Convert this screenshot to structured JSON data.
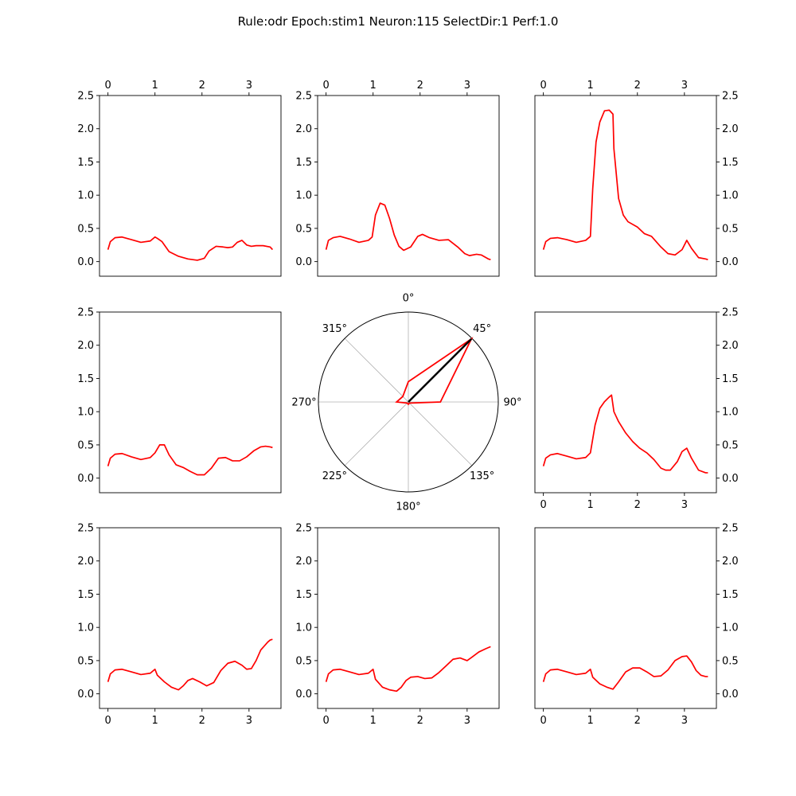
{
  "figure_title": "Rule:odr Epoch:stim1 Neuron:115 SelectDir:1 Perf:1.0",
  "colors": {
    "trace": "#ff0000",
    "arrow": "#000000",
    "grid": "#b0b0b0",
    "axis": "#000000"
  },
  "chart_data": [
    {
      "type": "line",
      "panel": "top-left",
      "xaxis": "top",
      "yaxis": "left",
      "xlim": [
        -0.18,
        3.68
      ],
      "ylim": [
        -0.22,
        2.5
      ],
      "xticks": [
        "0",
        "1",
        "2",
        "3"
      ],
      "yticks": [
        "0.0",
        "0.5",
        "1.0",
        "1.5",
        "2.0",
        "2.5"
      ],
      "series": [
        {
          "x": [
            0,
            0.05,
            0.15,
            0.3,
            0.5,
            0.7,
            0.9,
            1.0,
            1.05,
            1.15,
            1.3,
            1.5,
            1.7,
            1.9,
            2.05,
            2.15,
            2.3,
            2.45,
            2.55,
            2.65,
            2.75,
            2.85,
            2.95,
            3.05,
            3.15,
            3.3,
            3.45,
            3.5
          ],
          "y": [
            0.18,
            0.3,
            0.36,
            0.37,
            0.33,
            0.29,
            0.31,
            0.37,
            0.35,
            0.3,
            0.15,
            0.08,
            0.04,
            0.02,
            0.05,
            0.16,
            0.23,
            0.22,
            0.21,
            0.22,
            0.29,
            0.32,
            0.25,
            0.23,
            0.24,
            0.24,
            0.22,
            0.18
          ]
        }
      ]
    },
    {
      "type": "line",
      "panel": "top-middle",
      "xaxis": "top",
      "yaxis": "left",
      "xlim": [
        -0.18,
        3.68
      ],
      "ylim": [
        -0.22,
        2.5
      ],
      "xticks": [
        "0",
        "1",
        "2",
        "3"
      ],
      "yticks": [
        "0.0",
        "0.5",
        "1.0",
        "1.5",
        "2.0",
        "2.5"
      ],
      "series": [
        {
          "x": [
            0,
            0.05,
            0.15,
            0.3,
            0.5,
            0.7,
            0.9,
            0.98,
            1.05,
            1.15,
            1.25,
            1.35,
            1.45,
            1.55,
            1.65,
            1.8,
            1.95,
            2.05,
            2.2,
            2.4,
            2.6,
            2.8,
            2.95,
            3.05,
            3.2,
            3.3,
            3.45,
            3.5
          ],
          "y": [
            0.18,
            0.32,
            0.36,
            0.38,
            0.34,
            0.29,
            0.32,
            0.37,
            0.7,
            0.88,
            0.85,
            0.65,
            0.4,
            0.23,
            0.17,
            0.22,
            0.38,
            0.41,
            0.36,
            0.32,
            0.33,
            0.22,
            0.12,
            0.09,
            0.11,
            0.1,
            0.04,
            0.03
          ]
        }
      ]
    },
    {
      "type": "line",
      "panel": "top-right",
      "xaxis": "top",
      "yaxis": "right",
      "xlim": [
        -0.18,
        3.68
      ],
      "ylim": [
        -0.22,
        2.5
      ],
      "xticks": [
        "0",
        "1",
        "2",
        "3"
      ],
      "yticks": [
        "0.0",
        "0.5",
        "1.0",
        "1.5",
        "2.0",
        "2.5"
      ],
      "series": [
        {
          "x": [
            0,
            0.05,
            0.15,
            0.3,
            0.5,
            0.7,
            0.9,
            1.0,
            1.05,
            1.12,
            1.2,
            1.3,
            1.4,
            1.48,
            1.5,
            1.6,
            1.7,
            1.8,
            2.0,
            2.15,
            2.3,
            2.5,
            2.65,
            2.8,
            2.95,
            3.05,
            3.15,
            3.3,
            3.45,
            3.5
          ],
          "y": [
            0.18,
            0.3,
            0.35,
            0.36,
            0.33,
            0.29,
            0.32,
            0.38,
            1.1,
            1.8,
            2.1,
            2.27,
            2.28,
            2.22,
            1.7,
            0.95,
            0.7,
            0.6,
            0.52,
            0.42,
            0.38,
            0.22,
            0.12,
            0.1,
            0.18,
            0.32,
            0.2,
            0.06,
            0.04,
            0.03
          ]
        }
      ]
    },
    {
      "type": "line",
      "panel": "middle-left",
      "xaxis": "none",
      "yaxis": "left",
      "xlim": [
        -0.18,
        3.68
      ],
      "ylim": [
        -0.22,
        2.5
      ],
      "xticks": [],
      "yticks": [
        "0.0",
        "0.5",
        "1.0",
        "1.5",
        "2.0",
        "2.5"
      ],
      "series": [
        {
          "x": [
            0,
            0.05,
            0.15,
            0.3,
            0.5,
            0.7,
            0.9,
            1.0,
            1.1,
            1.2,
            1.3,
            1.45,
            1.6,
            1.75,
            1.9,
            2.05,
            2.2,
            2.35,
            2.5,
            2.65,
            2.8,
            2.95,
            3.1,
            3.25,
            3.35,
            3.45,
            3.5
          ],
          "y": [
            0.18,
            0.3,
            0.36,
            0.37,
            0.32,
            0.28,
            0.31,
            0.38,
            0.5,
            0.5,
            0.35,
            0.2,
            0.16,
            0.1,
            0.05,
            0.05,
            0.15,
            0.3,
            0.31,
            0.26,
            0.26,
            0.32,
            0.41,
            0.47,
            0.48,
            0.47,
            0.46
          ]
        }
      ]
    },
    {
      "type": "polar",
      "panel": "center",
      "theta_labels": [
        "0°",
        "45°",
        "90°",
        "135°",
        "180°",
        "225°",
        "270°",
        "315°"
      ],
      "theta_deg": [
        0,
        45,
        90,
        135,
        180,
        225,
        270,
        315
      ],
      "radial_max": 2.3,
      "r": [
        0.52,
        2.28,
        0.82,
        0.04,
        0.06,
        0.04,
        0.3,
        0.2
      ],
      "arrow": {
        "theta_deg": 45,
        "r": 2.28
      }
    },
    {
      "type": "line",
      "panel": "middle-right",
      "xaxis": "bottom",
      "yaxis": "right",
      "xlim": [
        -0.18,
        3.68
      ],
      "ylim": [
        -0.22,
        2.5
      ],
      "xticks": [
        "0",
        "1",
        "2",
        "3"
      ],
      "yticks": [
        "0.0",
        "0.5",
        "1.0",
        "1.5",
        "2.0",
        "2.5"
      ],
      "series": [
        {
          "x": [
            0,
            0.05,
            0.15,
            0.3,
            0.5,
            0.7,
            0.9,
            1.0,
            1.1,
            1.2,
            1.3,
            1.4,
            1.45,
            1.5,
            1.6,
            1.75,
            1.9,
            2.05,
            2.2,
            2.35,
            2.5,
            2.6,
            2.7,
            2.85,
            2.95,
            3.05,
            3.15,
            3.3,
            3.45,
            3.5
          ],
          "y": [
            0.18,
            0.3,
            0.35,
            0.37,
            0.33,
            0.29,
            0.31,
            0.38,
            0.8,
            1.05,
            1.15,
            1.22,
            1.25,
            1.0,
            0.85,
            0.68,
            0.55,
            0.45,
            0.38,
            0.28,
            0.15,
            0.12,
            0.12,
            0.25,
            0.4,
            0.45,
            0.3,
            0.12,
            0.08,
            0.08
          ]
        }
      ]
    },
    {
      "type": "line",
      "panel": "bottom-left",
      "xaxis": "bottom",
      "yaxis": "left",
      "xlim": [
        -0.18,
        3.68
      ],
      "ylim": [
        -0.22,
        2.5
      ],
      "xticks": [
        "0",
        "1",
        "2",
        "3"
      ],
      "yticks": [
        "0.0",
        "0.5",
        "1.0",
        "1.5",
        "2.0",
        "2.5"
      ],
      "series": [
        {
          "x": [
            0,
            0.05,
            0.15,
            0.3,
            0.5,
            0.7,
            0.9,
            1.0,
            1.05,
            1.2,
            1.35,
            1.5,
            1.6,
            1.7,
            1.8,
            1.95,
            2.1,
            2.25,
            2.4,
            2.55,
            2.7,
            2.85,
            2.95,
            3.05,
            3.15,
            3.25,
            3.4,
            3.45,
            3.5
          ],
          "y": [
            0.18,
            0.3,
            0.36,
            0.37,
            0.33,
            0.29,
            0.31,
            0.37,
            0.28,
            0.18,
            0.1,
            0.06,
            0.12,
            0.2,
            0.23,
            0.18,
            0.12,
            0.17,
            0.35,
            0.46,
            0.49,
            0.43,
            0.37,
            0.38,
            0.5,
            0.66,
            0.78,
            0.81,
            0.82
          ]
        }
      ]
    },
    {
      "type": "line",
      "panel": "bottom-middle",
      "xaxis": "bottom",
      "yaxis": "left",
      "xlim": [
        -0.18,
        3.68
      ],
      "ylim": [
        -0.22,
        2.5
      ],
      "xticks": [
        "0",
        "1",
        "2",
        "3"
      ],
      "yticks": [
        "0.0",
        "0.5",
        "1.0",
        "1.5",
        "2.0",
        "2.5"
      ],
      "series": [
        {
          "x": [
            0,
            0.05,
            0.15,
            0.3,
            0.5,
            0.7,
            0.9,
            1.0,
            1.05,
            1.2,
            1.35,
            1.5,
            1.6,
            1.7,
            1.8,
            1.95,
            2.1,
            2.25,
            2.4,
            2.55,
            2.7,
            2.85,
            3.0,
            3.1,
            3.25,
            3.4,
            3.5
          ],
          "y": [
            0.18,
            0.3,
            0.36,
            0.37,
            0.33,
            0.29,
            0.31,
            0.37,
            0.22,
            0.1,
            0.06,
            0.04,
            0.1,
            0.2,
            0.25,
            0.26,
            0.23,
            0.24,
            0.32,
            0.42,
            0.52,
            0.54,
            0.5,
            0.55,
            0.63,
            0.68,
            0.71
          ]
        }
      ]
    },
    {
      "type": "line",
      "panel": "bottom-right",
      "xaxis": "bottom",
      "yaxis": "right",
      "xlim": [
        -0.18,
        3.68
      ],
      "ylim": [
        -0.22,
        2.5
      ],
      "xticks": [
        "0",
        "1",
        "2",
        "3"
      ],
      "yticks": [
        "0.0",
        "0.5",
        "1.0",
        "1.5",
        "2.0",
        "2.5"
      ],
      "series": [
        {
          "x": [
            0,
            0.05,
            0.15,
            0.3,
            0.5,
            0.7,
            0.9,
            1.0,
            1.05,
            1.2,
            1.35,
            1.48,
            1.6,
            1.75,
            1.9,
            2.05,
            2.2,
            2.35,
            2.5,
            2.65,
            2.8,
            2.95,
            3.05,
            3.15,
            3.25,
            3.35,
            3.45,
            3.5
          ],
          "y": [
            0.18,
            0.3,
            0.36,
            0.37,
            0.33,
            0.29,
            0.31,
            0.37,
            0.25,
            0.15,
            0.1,
            0.07,
            0.18,
            0.33,
            0.39,
            0.39,
            0.33,
            0.26,
            0.27,
            0.36,
            0.5,
            0.56,
            0.57,
            0.48,
            0.35,
            0.28,
            0.26,
            0.26
          ]
        }
      ]
    }
  ]
}
